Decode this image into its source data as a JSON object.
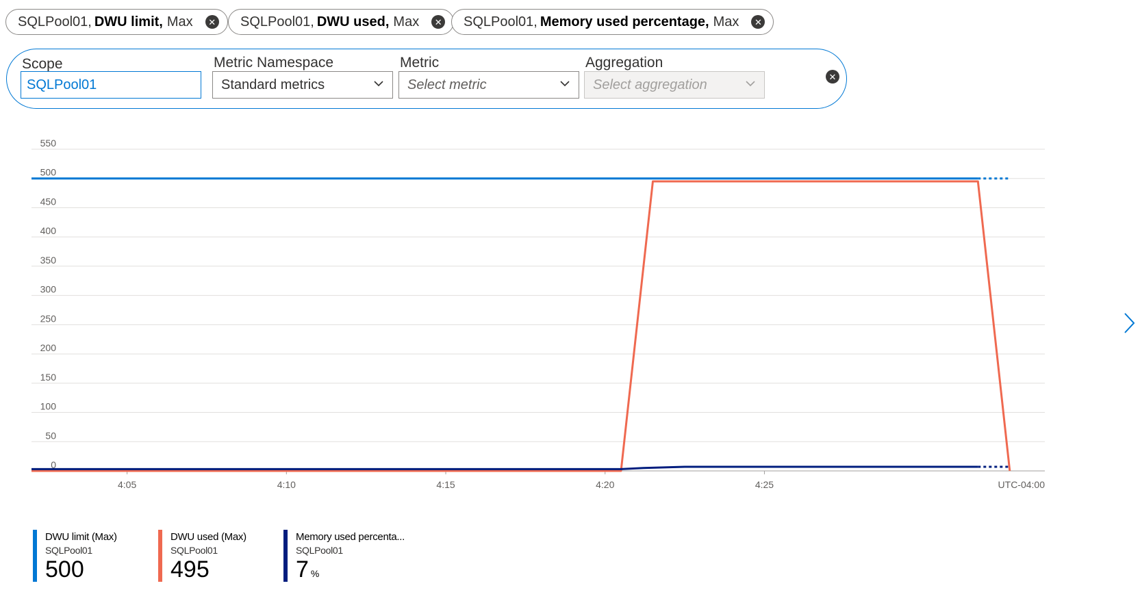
{
  "pills": [
    {
      "resource": "SQLPool01,",
      "metric": "DWU limit,",
      "aggregation": "Max"
    },
    {
      "resource": "SQLPool01,",
      "metric": "DWU used,",
      "aggregation": "Max"
    },
    {
      "resource": "SQLPool01,",
      "metric": "Memory used percentage,",
      "aggregation": "Max"
    }
  ],
  "editor": {
    "scope_label": "Scope",
    "scope_value": "SQLPool01",
    "namespace_label": "Metric Namespace",
    "namespace_value": "Standard metrics",
    "metric_label": "Metric",
    "metric_placeholder": "Select metric",
    "aggregation_label": "Aggregation",
    "aggregation_placeholder": "Select aggregation"
  },
  "chart_data": {
    "type": "line",
    "title": "",
    "xlabel": "",
    "ylabel": "",
    "timezone_label": "UTC-04:00",
    "ylim": [
      0,
      550
    ],
    "y_ticks": [
      0,
      50,
      100,
      150,
      200,
      250,
      300,
      350,
      400,
      450,
      500,
      550
    ],
    "x_ticks": [
      "4:05",
      "4:10",
      "4:15",
      "4:20",
      "4:25"
    ],
    "x_tick_minutes": [
      5,
      10,
      15,
      20,
      25
    ],
    "xlim_minutes": [
      2,
      33.8
    ],
    "grid": true,
    "legend_position": "bottom-left",
    "series": [
      {
        "name": "DWU limit (Max)",
        "resource": "SQLPool01",
        "color": "#0078d4",
        "value_label": "500",
        "unit": "",
        "x": [
          2,
          31.7
        ],
        "y": [
          500,
          500
        ],
        "dotted_x": [
          31.7,
          32.7
        ],
        "dotted_y": [
          500,
          500
        ]
      },
      {
        "name": "DWU used (Max)",
        "resource": "SQLPool01",
        "color": "#ef6950",
        "value_label": "495",
        "unit": "",
        "x": [
          2,
          20.5,
          21.5,
          31.7,
          32.7
        ],
        "y": [
          0,
          0,
          495,
          495,
          0
        ]
      },
      {
        "name": "Memory used percenta...",
        "resource": "SQLPool01",
        "color": "#001d7e",
        "value_label": "7",
        "unit": "%",
        "x": [
          2,
          20.5,
          21.2,
          22.5,
          31.7
        ],
        "y": [
          3,
          3,
          5,
          7,
          7
        ],
        "dotted_x": [
          31.7,
          32.7
        ],
        "dotted_y": [
          7,
          7
        ]
      }
    ]
  }
}
